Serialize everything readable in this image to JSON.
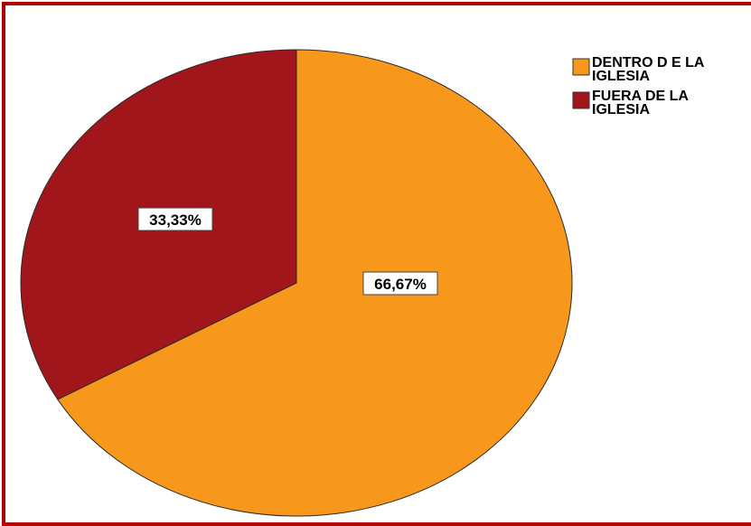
{
  "chart_data": {
    "type": "pie",
    "slices": [
      {
        "name": "DENTRO D E LA IGLESIA",
        "legend_lines": [
          "DENTRO D E LA",
          "IGLESIA"
        ],
        "value": 66.67,
        "label": "66,67%",
        "color": "#f7981d"
      },
      {
        "name": "FUERA DE LA IGLESIA",
        "legend_lines": [
          "FUERA DE LA",
          "IGLESIA"
        ],
        "value": 33.33,
        "label": "33,33%",
        "color": "#a0161a"
      }
    ],
    "legend_placement": "top-right",
    "border_color": "#b00000"
  }
}
